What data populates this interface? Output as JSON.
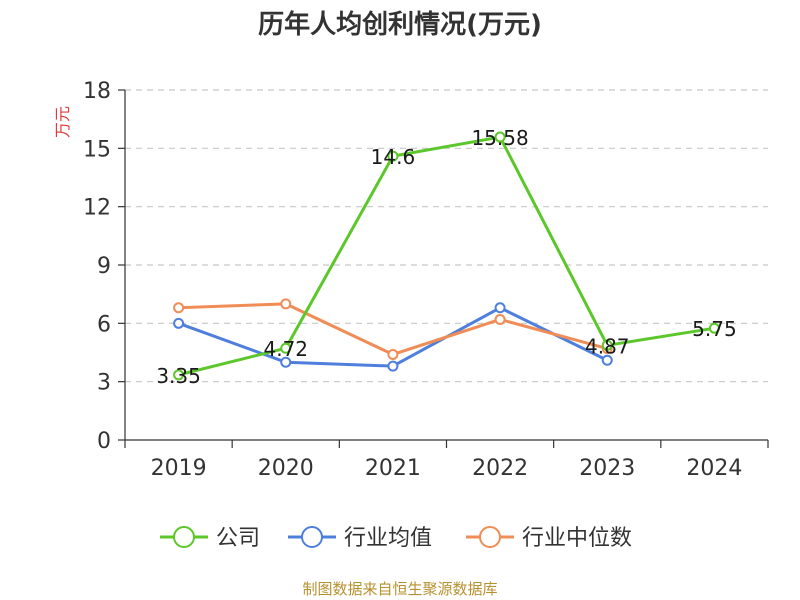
{
  "chart_data": {
    "type": "line",
    "title": "历年人均创利情况(万元)",
    "ylabel": "万元",
    "xlabel": "",
    "categories": [
      "2019",
      "2020",
      "2021",
      "2022",
      "2023",
      "2024"
    ],
    "ylim": [
      0,
      18
    ],
    "yticks": [
      0,
      3,
      6,
      9,
      12,
      15,
      18
    ],
    "grid": true,
    "legend_position": "bottom",
    "series": [
      {
        "name": "公司",
        "color": "#5cc72a",
        "values": [
          3.35,
          4.72,
          14.6,
          15.58,
          4.87,
          5.75
        ],
        "labels": [
          "3.35",
          "4.72",
          "14.6",
          "15.58",
          "4.87",
          "5.75"
        ]
      },
      {
        "name": "行业均值",
        "color": "#4e7fdc",
        "values": [
          6.0,
          4.0,
          3.8,
          6.8,
          4.1,
          null
        ]
      },
      {
        "name": "行业中位数",
        "color": "#f08c55",
        "values": [
          6.8,
          7.0,
          4.4,
          6.2,
          4.7,
          null
        ]
      }
    ]
  },
  "source": "制图数据来自恒生聚源数据库"
}
